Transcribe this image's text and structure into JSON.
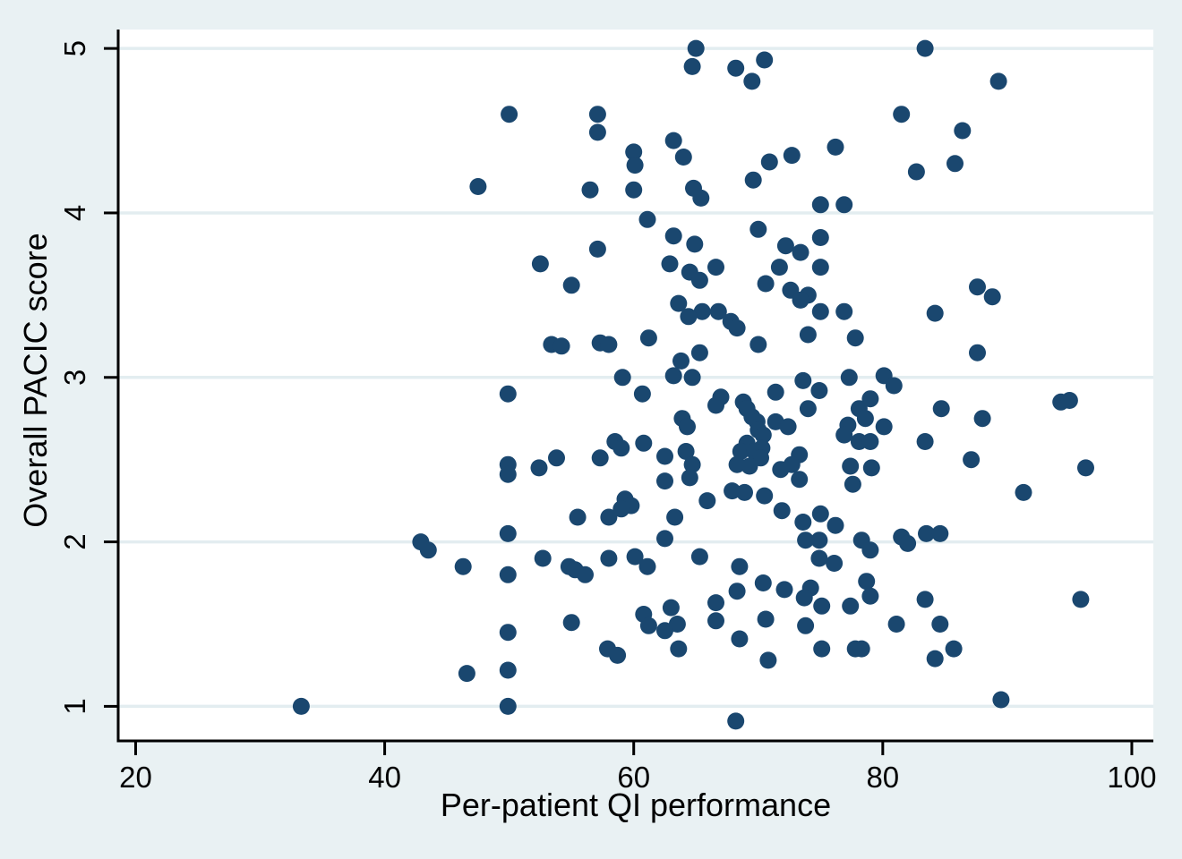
{
  "chart_data": {
    "type": "scatter",
    "title": "",
    "xlabel": "Per-patient QI performance",
    "ylabel": "Overall PACIC score",
    "xticks": [
      20,
      40,
      60,
      80,
      100
    ],
    "yticks": [
      1,
      2,
      3,
      4,
      5
    ],
    "xlim": [
      18.6,
      101.73
    ],
    "ylim": [
      0.79,
      5.115
    ],
    "grid": "horizontal-only",
    "legend": "none",
    "marker": "filled-circle",
    "colors": {
      "marker": "#1a476f",
      "figure_background": "#e9f1f3",
      "plot_background": "#ffffff",
      "gridline": "#e3edf0",
      "axis": "#000000",
      "text": "#000000"
    },
    "points": [
      [
        65.0,
        5.0
      ],
      [
        83.4,
        5.0
      ],
      [
        70.5,
        4.93
      ],
      [
        64.7,
        4.89
      ],
      [
        68.2,
        4.88
      ],
      [
        69.5,
        4.8
      ],
      [
        89.3,
        4.8
      ],
      [
        50.0,
        4.6
      ],
      [
        57.1,
        4.6
      ],
      [
        81.5,
        4.6
      ],
      [
        86.4,
        4.5
      ],
      [
        57.1,
        4.49
      ],
      [
        63.2,
        4.44
      ],
      [
        76.2,
        4.4
      ],
      [
        60.0,
        4.37
      ],
      [
        72.7,
        4.35
      ],
      [
        64.0,
        4.34
      ],
      [
        70.9,
        4.31
      ],
      [
        85.8,
        4.3
      ],
      [
        60.1,
        4.29
      ],
      [
        82.7,
        4.25
      ],
      [
        69.6,
        4.2
      ],
      [
        47.5,
        4.16
      ],
      [
        64.8,
        4.15
      ],
      [
        56.5,
        4.14
      ],
      [
        60.0,
        4.14
      ],
      [
        65.4,
        4.09
      ],
      [
        75.0,
        4.05
      ],
      [
        76.9,
        4.05
      ],
      [
        61.1,
        3.96
      ],
      [
        70.0,
        3.9
      ],
      [
        63.2,
        3.86
      ],
      [
        75.0,
        3.85
      ],
      [
        64.9,
        3.81
      ],
      [
        72.2,
        3.8
      ],
      [
        57.1,
        3.78
      ],
      [
        73.4,
        3.76
      ],
      [
        52.5,
        3.69
      ],
      [
        62.9,
        3.69
      ],
      [
        66.6,
        3.67
      ],
      [
        71.7,
        3.67
      ],
      [
        75.0,
        3.67
      ],
      [
        64.5,
        3.64
      ],
      [
        65.3,
        3.59
      ],
      [
        70.6,
        3.57
      ],
      [
        55.0,
        3.56
      ],
      [
        87.6,
        3.55
      ],
      [
        72.6,
        3.53
      ],
      [
        74.0,
        3.5
      ],
      [
        88.8,
        3.49
      ],
      [
        73.4,
        3.47
      ],
      [
        63.6,
        3.45
      ],
      [
        66.8,
        3.4
      ],
      [
        65.5,
        3.4
      ],
      [
        75.0,
        3.4
      ],
      [
        76.9,
        3.4
      ],
      [
        84.2,
        3.39
      ],
      [
        64.4,
        3.37
      ],
      [
        67.8,
        3.34
      ],
      [
        68.3,
        3.3
      ],
      [
        74.0,
        3.26
      ],
      [
        77.8,
        3.24
      ],
      [
        61.2,
        3.24
      ],
      [
        57.3,
        3.21
      ],
      [
        53.4,
        3.2
      ],
      [
        58.0,
        3.2
      ],
      [
        70.0,
        3.2
      ],
      [
        54.2,
        3.19
      ],
      [
        65.3,
        3.15
      ],
      [
        87.6,
        3.15
      ],
      [
        63.8,
        3.1
      ],
      [
        63.2,
        3.01
      ],
      [
        80.1,
        3.01
      ],
      [
        59.1,
        3.0
      ],
      [
        64.7,
        3.0
      ],
      [
        77.3,
        3.0
      ],
      [
        73.6,
        2.98
      ],
      [
        80.9,
        2.95
      ],
      [
        74.9,
        2.92
      ],
      [
        71.4,
        2.91
      ],
      [
        49.9,
        2.9
      ],
      [
        60.7,
        2.9
      ],
      [
        67.0,
        2.88
      ],
      [
        68.8,
        2.85
      ],
      [
        94.3,
        2.85
      ],
      [
        95.0,
        2.86
      ],
      [
        79.0,
        2.87
      ],
      [
        66.6,
        2.83
      ],
      [
        69.1,
        2.81
      ],
      [
        74.0,
        2.81
      ],
      [
        78.1,
        2.81
      ],
      [
        84.7,
        2.81
      ],
      [
        69.5,
        2.76
      ],
      [
        78.6,
        2.75
      ],
      [
        88.0,
        2.75
      ],
      [
        63.9,
        2.75
      ],
      [
        69.9,
        2.73
      ],
      [
        71.4,
        2.73
      ],
      [
        77.2,
        2.71
      ],
      [
        72.4,
        2.7
      ],
      [
        64.3,
        2.7
      ],
      [
        80.1,
        2.7
      ],
      [
        70.0,
        2.68
      ],
      [
        76.9,
        2.65
      ],
      [
        70.4,
        2.65
      ],
      [
        58.5,
        2.61
      ],
      [
        78.1,
        2.61
      ],
      [
        79.0,
        2.61
      ],
      [
        83.4,
        2.61
      ],
      [
        60.8,
        2.6
      ],
      [
        69.1,
        2.6
      ],
      [
        59.0,
        2.57
      ],
      [
        70.3,
        2.57
      ],
      [
        64.2,
        2.55
      ],
      [
        68.6,
        2.55
      ],
      [
        69.7,
        2.55
      ],
      [
        73.3,
        2.53
      ],
      [
        62.5,
        2.52
      ],
      [
        53.8,
        2.51
      ],
      [
        57.3,
        2.51
      ],
      [
        70.2,
        2.51
      ],
      [
        87.1,
        2.5
      ],
      [
        49.9,
        2.47
      ],
      [
        64.7,
        2.47
      ],
      [
        68.3,
        2.47
      ],
      [
        72.7,
        2.47
      ],
      [
        77.4,
        2.46
      ],
      [
        69.3,
        2.46
      ],
      [
        52.4,
        2.45
      ],
      [
        79.1,
        2.45
      ],
      [
        96.3,
        2.45
      ],
      [
        71.8,
        2.44
      ],
      [
        49.9,
        2.41
      ],
      [
        64.5,
        2.39
      ],
      [
        62.5,
        2.37
      ],
      [
        73.3,
        2.38
      ],
      [
        77.6,
        2.35
      ],
      [
        67.9,
        2.31
      ],
      [
        68.9,
        2.3
      ],
      [
        91.3,
        2.3
      ],
      [
        70.5,
        2.28
      ],
      [
        59.3,
        2.26
      ],
      [
        65.9,
        2.25
      ],
      [
        59.8,
        2.22
      ],
      [
        59.0,
        2.2
      ],
      [
        71.9,
        2.19
      ],
      [
        75.0,
        2.17
      ],
      [
        55.5,
        2.15
      ],
      [
        58.0,
        2.15
      ],
      [
        63.3,
        2.15
      ],
      [
        73.6,
        2.12
      ],
      [
        76.2,
        2.1
      ],
      [
        49.9,
        2.05
      ],
      [
        83.5,
        2.05
      ],
      [
        84.6,
        2.05
      ],
      [
        81.5,
        2.03
      ],
      [
        62.5,
        2.02
      ],
      [
        74.9,
        2.01
      ],
      [
        78.3,
        2.01
      ],
      [
        73.8,
        2.01
      ],
      [
        42.9,
        2.0
      ],
      [
        82.0,
        1.99
      ],
      [
        43.5,
        1.95
      ],
      [
        79.0,
        1.95
      ],
      [
        52.7,
        1.9
      ],
      [
        58.0,
        1.9
      ],
      [
        74.9,
        1.9
      ],
      [
        60.1,
        1.91
      ],
      [
        65.3,
        1.91
      ],
      [
        76.1,
        1.87
      ],
      [
        46.3,
        1.85
      ],
      [
        54.8,
        1.85
      ],
      [
        61.1,
        1.85
      ],
      [
        68.5,
        1.85
      ],
      [
        55.3,
        1.83
      ],
      [
        49.9,
        1.8
      ],
      [
        56.1,
        1.8
      ],
      [
        78.7,
        1.76
      ],
      [
        70.4,
        1.75
      ],
      [
        74.2,
        1.72
      ],
      [
        72.1,
        1.71
      ],
      [
        68.3,
        1.7
      ],
      [
        79.0,
        1.67
      ],
      [
        73.7,
        1.66
      ],
      [
        83.4,
        1.65
      ],
      [
        95.9,
        1.65
      ],
      [
        66.6,
        1.63
      ],
      [
        77.4,
        1.61
      ],
      [
        75.1,
        1.61
      ],
      [
        63.0,
        1.6
      ],
      [
        60.8,
        1.56
      ],
      [
        70.6,
        1.53
      ],
      [
        66.6,
        1.52
      ],
      [
        55.0,
        1.51
      ],
      [
        81.1,
        1.5
      ],
      [
        63.5,
        1.5
      ],
      [
        84.6,
        1.5
      ],
      [
        61.2,
        1.49
      ],
      [
        73.8,
        1.49
      ],
      [
        62.5,
        1.46
      ],
      [
        49.9,
        1.45
      ],
      [
        68.5,
        1.41
      ],
      [
        57.9,
        1.35
      ],
      [
        63.6,
        1.35
      ],
      [
        75.1,
        1.35
      ],
      [
        77.8,
        1.35
      ],
      [
        78.3,
        1.35
      ],
      [
        85.7,
        1.35
      ],
      [
        58.7,
        1.31
      ],
      [
        84.2,
        1.29
      ],
      [
        70.8,
        1.28
      ],
      [
        49.9,
        1.22
      ],
      [
        46.6,
        1.2
      ],
      [
        89.5,
        1.04
      ],
      [
        33.3,
        1.0
      ],
      [
        49.9,
        1.0
      ],
      [
        68.2,
        0.91
      ]
    ]
  }
}
